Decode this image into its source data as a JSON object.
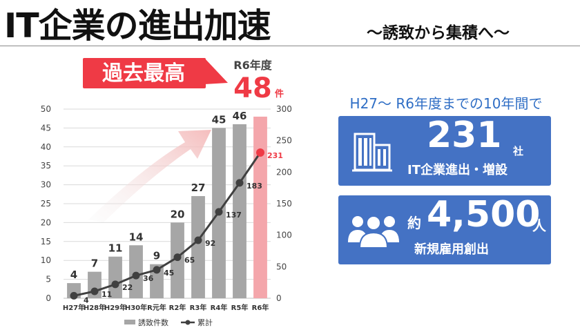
{
  "header": {
    "title": "IT企業の進出加速",
    "subtitle": "〜誘致から集積へ〜"
  },
  "callout": {
    "badge": "過去最高",
    "year_label": "R6年度",
    "value": "48",
    "unit": "件"
  },
  "stats": {
    "heading": "H27〜 R6年度までの10年間で",
    "companies": {
      "value": "231",
      "unit": "社",
      "caption": "IT企業進出・増設"
    },
    "jobs": {
      "prefix": "約",
      "value": "4,500",
      "unit": "人",
      "caption": "新規雇用創出"
    }
  },
  "colors": {
    "bar": "#a6a6a6",
    "bar_highlight": "#f4a6ab",
    "line": "#404040",
    "highlight": "#ef3a45",
    "panel": "#4472c4",
    "heading": "#2f6ec5"
  },
  "icons": [
    "building-icon",
    "people-icon"
  ],
  "chart_data": {
    "type": "bar",
    "categories": [
      "H27年",
      "H28年",
      "H29年",
      "H30年",
      "R元年",
      "R2年",
      "R3年",
      "R4年",
      "R5年",
      "R6年"
    ],
    "series": [
      {
        "name": "誘致件数",
        "type": "bar",
        "axis": "left",
        "values": [
          4,
          7,
          11,
          14,
          9,
          20,
          27,
          45,
          46,
          48
        ]
      },
      {
        "name": "累計",
        "type": "line",
        "axis": "right",
        "values": [
          4,
          11,
          22,
          36,
          45,
          65,
          92,
          137,
          183,
          231
        ]
      }
    ],
    "bar_labels_shown": [
      "4",
      "7",
      "11",
      "14",
      "9",
      "20",
      "27",
      "45",
      "46",
      ""
    ],
    "y_left": {
      "ylim": [
        0,
        50
      ],
      "ticks": [
        0,
        5,
        10,
        15,
        20,
        25,
        30,
        35,
        40,
        45,
        50
      ]
    },
    "y_right": {
      "ylim": [
        0,
        300
      ],
      "ticks": [
        0,
        50,
        100,
        150,
        200,
        250,
        300
      ]
    },
    "highlight_category": "R6年",
    "legend": {
      "position": "bottom"
    },
    "grid": true
  }
}
